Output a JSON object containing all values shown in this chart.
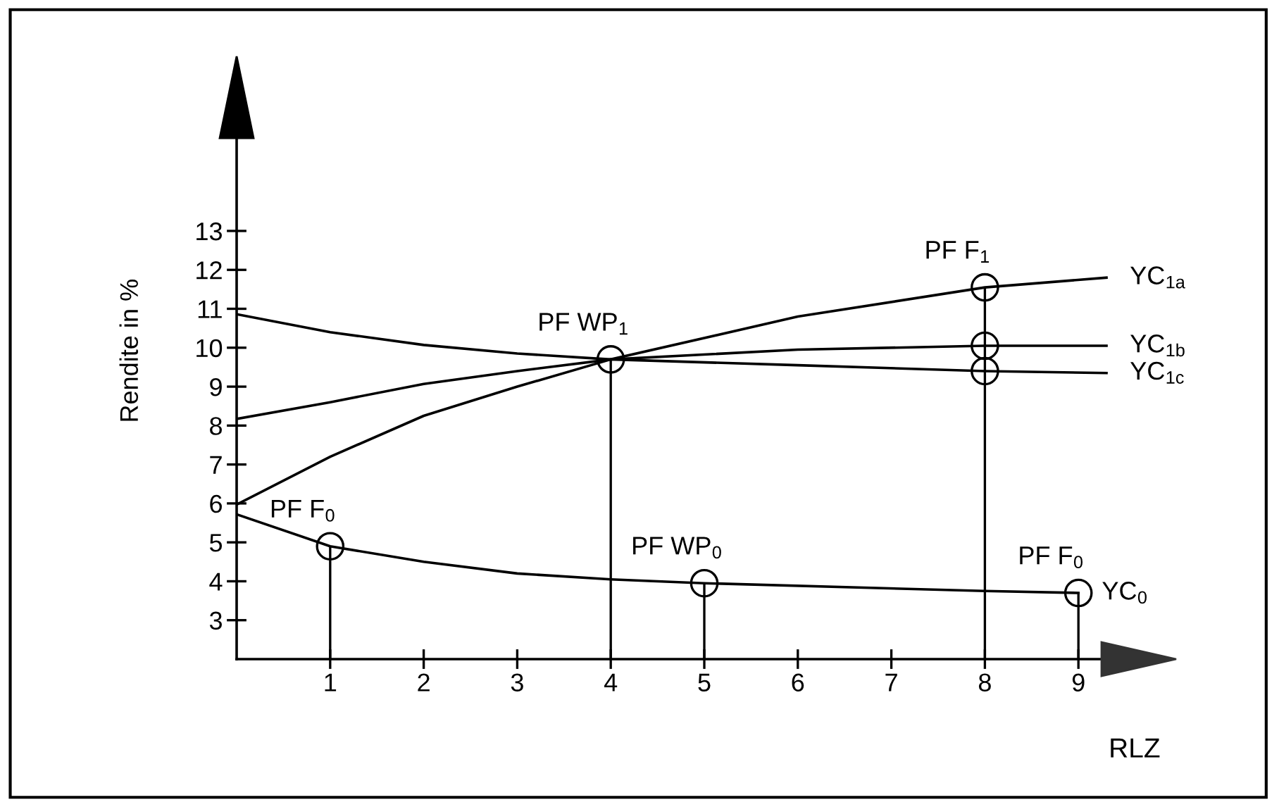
{
  "chart_data": {
    "type": "line",
    "xlabel": "RLZ",
    "ylabel": "Rendite in %",
    "xlim": [
      0,
      10
    ],
    "ylim": [
      2,
      16.4
    ],
    "xticks": [
      1,
      2,
      3,
      4,
      5,
      6,
      7,
      8,
      9
    ],
    "yticks": [
      3,
      4,
      5,
      6,
      7,
      8,
      9,
      10,
      11,
      12,
      13
    ],
    "grid": false,
    "legend": false,
    "marker": "none",
    "line_style": "solid",
    "series": [
      {
        "name": "YC$_{1a}$",
        "color": "#000000",
        "x": [
          0,
          1,
          2,
          3,
          4,
          6,
          8,
          9.3
        ],
        "values": [
          5.97,
          7.2,
          8.25,
          9.0,
          9.7,
          10.8,
          11.55,
          11.8
        ]
      },
      {
        "name": "YC$_{1b}$",
        "color": "#000000",
        "x": [
          0,
          1,
          2,
          3,
          4,
          6,
          8,
          9.3
        ],
        "values": [
          8.17,
          8.6,
          9.07,
          9.4,
          9.7,
          9.95,
          10.05,
          10.05
        ]
      },
      {
        "name": "YC$_{1c}$",
        "color": "#000000",
        "x": [
          0,
          1,
          2,
          3,
          4,
          6,
          8,
          9.3
        ],
        "values": [
          10.86,
          10.4,
          10.07,
          9.85,
          9.7,
          9.55,
          9.4,
          9.35
        ]
      },
      {
        "name": "YC$_{0}$",
        "color": "#000000",
        "x": [
          0,
          1,
          2,
          3,
          4,
          5,
          8,
          9
        ],
        "values": [
          5.72,
          4.9,
          4.5,
          4.2,
          4.05,
          3.95,
          3.75,
          3.7
        ]
      },
      {
        "type": "lollipop",
        "color": "#000000",
        "marker": "circle",
        "x": [
          1,
          4,
          5,
          8,
          9
        ],
        "values": [
          4.9,
          9.7,
          3.95,
          11.55,
          3.7
        ]
      },
      {
        "type": "scatter",
        "color": "#000000",
        "marker": "circle",
        "x": [
          8,
          8
        ],
        "values": [
          10.05,
          9.4
        ]
      }
    ],
    "annotations": [
      {
        "text": "PF F$_{0}$",
        "x": 1,
        "y": 4.9
      },
      {
        "text": "PF WP$_{1}$",
        "x": 4,
        "y": 9.7
      },
      {
        "text": "PF WP$_{0}$",
        "x": 5,
        "y": 3.95
      },
      {
        "text": "PF F$_{1}$",
        "x": 8,
        "y": 11.55
      },
      {
        "text": "PF F$_{0}$",
        "x": 9,
        "y": 3.7
      }
    ]
  }
}
